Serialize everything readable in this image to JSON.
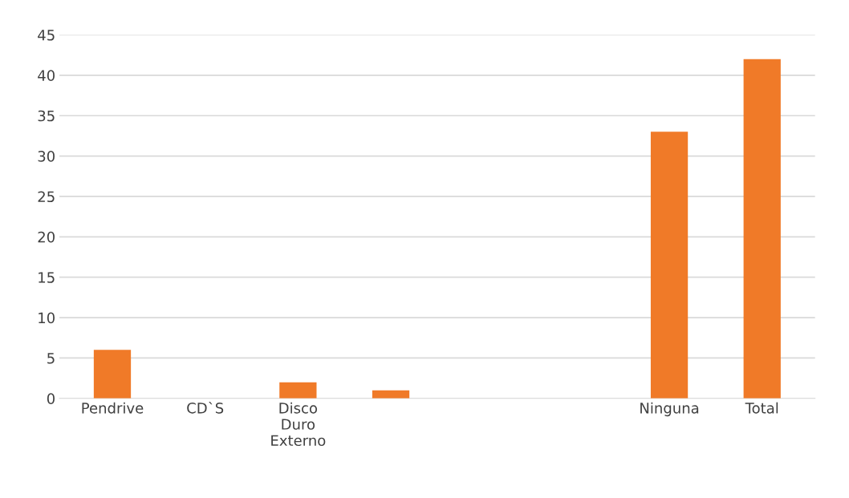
{
  "chart_data": {
    "type": "bar",
    "categories": [
      "Pendrive",
      "CD`S",
      "Disco\nDuro\nExterno",
      null,
      null,
      null,
      "Ninguna",
      "Total"
    ],
    "values": [
      6,
      0,
      2,
      1,
      0,
      0,
      33,
      42
    ],
    "color": "#f07a28",
    "ylim": [
      0,
      45
    ],
    "yticks": [
      0,
      5,
      10,
      15,
      20,
      25,
      30,
      35,
      40,
      45
    ],
    "grid": "y",
    "legend": false
  }
}
